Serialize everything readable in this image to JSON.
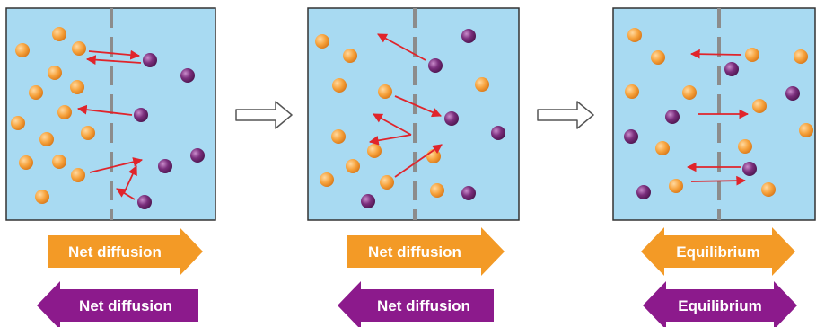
{
  "colors": {
    "water": "#a8daf2",
    "membrane": "#8c8c8c",
    "frame": "#333333",
    "orange_particle": "#f7a33d",
    "purple_particle": "#7b2f7d",
    "red_arrow": "#e0242b",
    "orange_arrow": "#f39a26",
    "purple_arrow": "#8c1a8c",
    "step_arrow": "#555555"
  },
  "icons": {
    "step_arrow": "hollow-right-arrow-icon",
    "orange_particle": "orange-circle-icon",
    "purple_particle": "purple-circle-icon"
  },
  "panels": [
    {
      "id": "initial",
      "orange_arrow": {
        "label": "Net diffusion",
        "direction": "right"
      },
      "purple_arrow": {
        "label": "Net diffusion",
        "direction": "left"
      }
    },
    {
      "id": "intermediate",
      "orange_arrow": {
        "label": "Net diffusion",
        "direction": "right"
      },
      "purple_arrow": {
        "label": "Net diffusion",
        "direction": "left"
      }
    },
    {
      "id": "equilibrium",
      "orange_arrow": {
        "label": "Equilibrium",
        "direction": "both"
      },
      "purple_arrow": {
        "label": "Equilibrium",
        "direction": "both"
      }
    }
  ]
}
